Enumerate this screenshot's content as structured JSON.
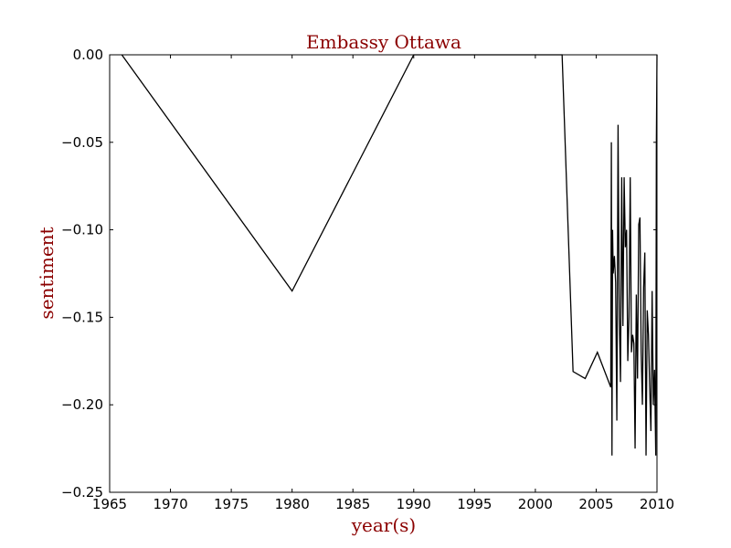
{
  "chart_data": {
    "type": "line",
    "title": "Embassy Ottawa",
    "xlabel": "year(s)",
    "ylabel": "sentiment",
    "xlim": [
      1965,
      2010
    ],
    "ylim": [
      -0.25,
      0.0
    ],
    "xticks": [
      1965,
      1970,
      1975,
      1980,
      1985,
      1990,
      1995,
      2000,
      2005,
      2010
    ],
    "xtick_labels": [
      "1965",
      "1970",
      "1975",
      "1980",
      "1985",
      "1990",
      "1995",
      "2000",
      "2005",
      "2010"
    ],
    "yticks": [
      0.0,
      -0.05,
      -0.1,
      -0.15,
      -0.2,
      -0.25
    ],
    "ytick_labels": [
      "0.00",
      "−0.05",
      "−0.10",
      "−0.15",
      "−0.20",
      "−0.25"
    ],
    "grid": false,
    "colors": {
      "line": "#000000",
      "labels": "#8b0000"
    },
    "series": [
      {
        "x": [
          1966.0,
          1980.0,
          1990.0,
          2002.2,
          2003.1,
          2004.1,
          2005.1,
          2006.2,
          2006.25,
          2006.3,
          2006.35,
          2006.4,
          2006.5,
          2006.6,
          2006.7,
          2006.8,
          2006.9,
          2007.0,
          2007.1,
          2007.2,
          2007.3,
          2007.4,
          2007.5,
          2007.6,
          2007.7,
          2007.8,
          2007.9,
          2008.0,
          2008.1,
          2008.2,
          2008.3,
          2008.4,
          2008.5,
          2008.6,
          2008.7,
          2008.8,
          2008.9,
          2009.0,
          2009.1,
          2009.2,
          2009.3,
          2009.4,
          2009.5,
          2009.6,
          2009.7,
          2009.8,
          2009.9,
          2009.95,
          2010.0
        ],
        "y": [
          0.0,
          -0.135,
          0.0,
          0.0,
          -0.181,
          -0.185,
          -0.17,
          -0.19,
          -0.05,
          -0.229,
          -0.1,
          -0.125,
          -0.115,
          -0.13,
          -0.209,
          -0.04,
          -0.15,
          -0.187,
          -0.07,
          -0.155,
          -0.07,
          -0.11,
          -0.1,
          -0.175,
          -0.15,
          -0.07,
          -0.17,
          -0.16,
          -0.165,
          -0.225,
          -0.137,
          -0.185,
          -0.097,
          -0.093,
          -0.17,
          -0.2,
          -0.133,
          -0.113,
          -0.229,
          -0.146,
          -0.16,
          -0.19,
          -0.215,
          -0.135,
          -0.2,
          -0.18,
          -0.229,
          -0.05,
          0.0
        ]
      }
    ]
  }
}
